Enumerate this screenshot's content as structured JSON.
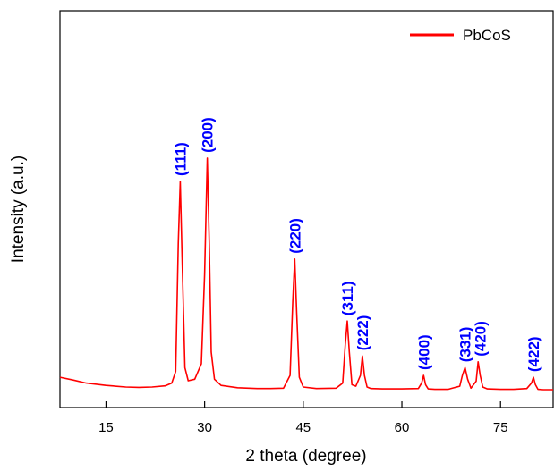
{
  "chart_data": {
    "type": "line",
    "title": "",
    "xlabel": "2 theta (degree)",
    "ylabel": "Intensity (a.u.)",
    "xlim": [
      8,
      83
    ],
    "ylim": [
      0,
      100
    ],
    "xticks": [
      15,
      30,
      45,
      60,
      75
    ],
    "y_ticks_shown": false,
    "grid": false,
    "legend_position": "top-right",
    "colors": {
      "series": "#ff0000",
      "labels": "#0000ff"
    },
    "series": [
      {
        "name": "PbCoS",
        "x": [
          8,
          10,
          12,
          15,
          18,
          20,
          22,
          24,
          25,
          25.6,
          26.0,
          26.3,
          26.6,
          27.0,
          27.5,
          28.5,
          29.5,
          30.0,
          30.4,
          30.7,
          31.0,
          31.5,
          32.5,
          35,
          38,
          40,
          42,
          43.0,
          43.4,
          43.7,
          44.0,
          44.4,
          45,
          47,
          50,
          51.0,
          51.4,
          51.7,
          52.0,
          52.4,
          53.0,
          53.7,
          54.0,
          54.3,
          54.7,
          55.3,
          57,
          60,
          62.5,
          63.0,
          63.3,
          63.6,
          64.0,
          65,
          67,
          68.8,
          69.2,
          69.6,
          70.0,
          70.5,
          71.3,
          71.6,
          71.9,
          72.3,
          73,
          75,
          77,
          79,
          79.7,
          80.0,
          80.3,
          80.7,
          81.5,
          83
        ],
        "values": [
          5.5,
          4.8,
          4.0,
          3.4,
          3.0,
          2.9,
          3.0,
          3.3,
          4.0,
          7.0,
          40.0,
          56.0,
          35.0,
          8.0,
          4.6,
          5.0,
          9.0,
          32.0,
          62.0,
          40.0,
          12.0,
          5.0,
          3.4,
          2.8,
          2.6,
          2.6,
          2.7,
          6.0,
          25.0,
          36.0,
          22.0,
          5.5,
          3.0,
          2.6,
          2.7,
          4.0,
          14.0,
          20.0,
          12.0,
          3.6,
          3.2,
          6.0,
          11.0,
          6.0,
          3.0,
          2.6,
          2.5,
          2.5,
          2.6,
          4.0,
          6.0,
          3.6,
          2.5,
          2.4,
          2.4,
          3.2,
          6.0,
          8.0,
          5.0,
          2.7,
          4.5,
          9.5,
          6.0,
          3.0,
          2.5,
          2.4,
          2.4,
          2.6,
          4.0,
          5.5,
          3.6,
          2.4,
          2.3,
          2.3
        ]
      }
    ],
    "annotations": [
      {
        "text": "(111)",
        "x": 26.3,
        "y": 56.0
      },
      {
        "text": "(200)",
        "x": 30.4,
        "y": 62.0
      },
      {
        "text": "(220)",
        "x": 43.7,
        "y": 36.0
      },
      {
        "text": "(311)",
        "x": 51.7,
        "y": 20.0
      },
      {
        "text": "(222)",
        "x": 54.0,
        "y": 11.0
      },
      {
        "text": "(400)",
        "x": 63.3,
        "y": 6.0
      },
      {
        "text": "(331)",
        "x": 69.6,
        "y": 8.0
      },
      {
        "text": "(420)",
        "x": 71.9,
        "y": 9.5
      },
      {
        "text": "(422)",
        "x": 80.0,
        "y": 5.5
      }
    ]
  }
}
